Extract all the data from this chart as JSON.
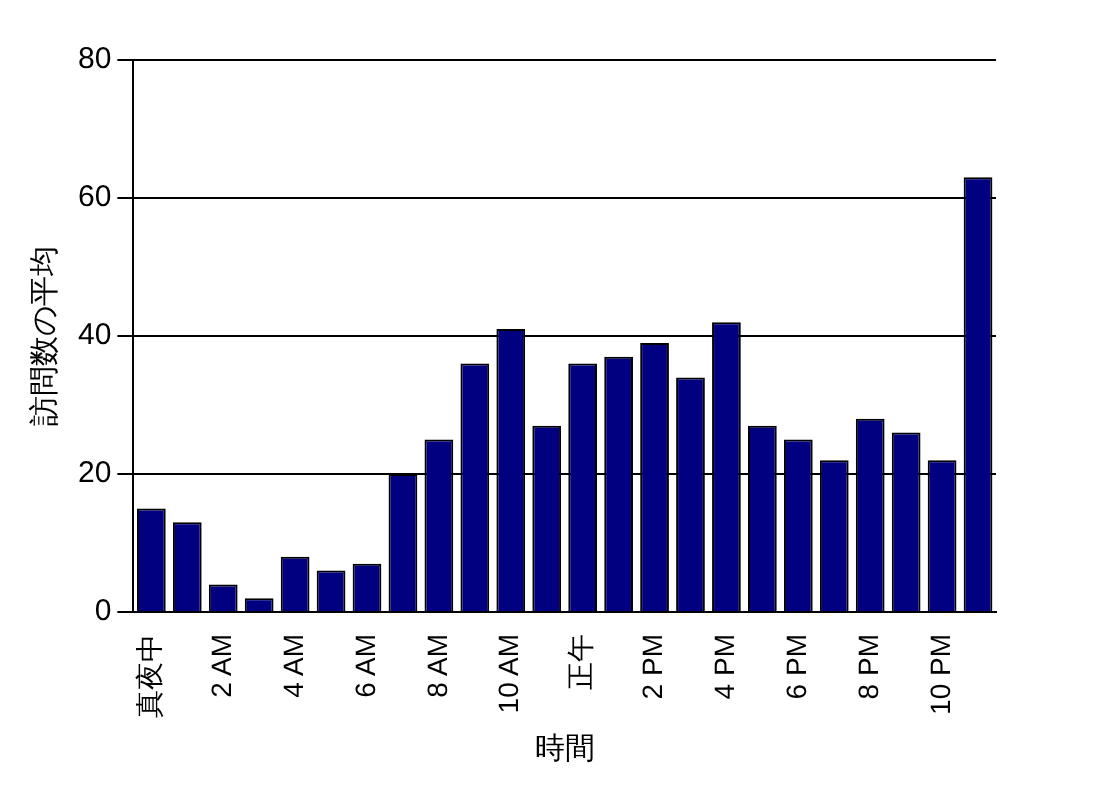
{
  "chart_data": {
    "type": "bar",
    "xlabel": "時間",
    "ylabel": "訪問数の平均",
    "categories": [
      "真夜中",
      null,
      "2 AM",
      null,
      "4 AM",
      null,
      "6 AM",
      null,
      "8 AM",
      null,
      "10 AM",
      null,
      "正午",
      null,
      "2 PM",
      null,
      "4 PM",
      null,
      "6 PM",
      null,
      "8 PM",
      null,
      "10 PM",
      null
    ],
    "values": [
      15,
      13,
      4,
      2,
      8,
      6,
      7,
      20,
      25,
      36,
      41,
      27,
      36,
      37,
      39,
      34,
      42,
      27,
      25,
      22,
      28,
      26,
      22,
      63
    ],
    "color": "#000080",
    "ylim": [
      0,
      80
    ],
    "yticks": [
      0,
      20,
      40,
      60,
      80
    ],
    "grid": "y"
  }
}
